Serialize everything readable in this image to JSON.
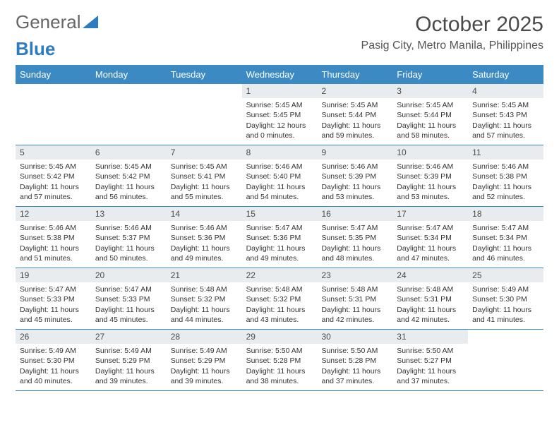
{
  "logo": {
    "text1": "General",
    "text2": "Blue"
  },
  "title": "October 2025",
  "location": "Pasig City, Metro Manila, Philippines",
  "colors": {
    "header_bg": "#3b8ac4",
    "header_text": "#ffffff",
    "daynum_bg": "#e9ecef",
    "week_border": "#3b8ac4",
    "text": "#333333",
    "logo_accent": "#2f7bbf"
  },
  "weekdays": [
    "Sunday",
    "Monday",
    "Tuesday",
    "Wednesday",
    "Thursday",
    "Friday",
    "Saturday"
  ],
  "weeks": [
    [
      null,
      null,
      null,
      {
        "n": "1",
        "sr": "5:45 AM",
        "ss": "5:45 PM",
        "dl": "12 hours and 0 minutes."
      },
      {
        "n": "2",
        "sr": "5:45 AM",
        "ss": "5:44 PM",
        "dl": "11 hours and 59 minutes."
      },
      {
        "n": "3",
        "sr": "5:45 AM",
        "ss": "5:44 PM",
        "dl": "11 hours and 58 minutes."
      },
      {
        "n": "4",
        "sr": "5:45 AM",
        "ss": "5:43 PM",
        "dl": "11 hours and 57 minutes."
      }
    ],
    [
      {
        "n": "5",
        "sr": "5:45 AM",
        "ss": "5:42 PM",
        "dl": "11 hours and 57 minutes."
      },
      {
        "n": "6",
        "sr": "5:45 AM",
        "ss": "5:42 PM",
        "dl": "11 hours and 56 minutes."
      },
      {
        "n": "7",
        "sr": "5:45 AM",
        "ss": "5:41 PM",
        "dl": "11 hours and 55 minutes."
      },
      {
        "n": "8",
        "sr": "5:46 AM",
        "ss": "5:40 PM",
        "dl": "11 hours and 54 minutes."
      },
      {
        "n": "9",
        "sr": "5:46 AM",
        "ss": "5:39 PM",
        "dl": "11 hours and 53 minutes."
      },
      {
        "n": "10",
        "sr": "5:46 AM",
        "ss": "5:39 PM",
        "dl": "11 hours and 53 minutes."
      },
      {
        "n": "11",
        "sr": "5:46 AM",
        "ss": "5:38 PM",
        "dl": "11 hours and 52 minutes."
      }
    ],
    [
      {
        "n": "12",
        "sr": "5:46 AM",
        "ss": "5:38 PM",
        "dl": "11 hours and 51 minutes."
      },
      {
        "n": "13",
        "sr": "5:46 AM",
        "ss": "5:37 PM",
        "dl": "11 hours and 50 minutes."
      },
      {
        "n": "14",
        "sr": "5:46 AM",
        "ss": "5:36 PM",
        "dl": "11 hours and 49 minutes."
      },
      {
        "n": "15",
        "sr": "5:47 AM",
        "ss": "5:36 PM",
        "dl": "11 hours and 49 minutes."
      },
      {
        "n": "16",
        "sr": "5:47 AM",
        "ss": "5:35 PM",
        "dl": "11 hours and 48 minutes."
      },
      {
        "n": "17",
        "sr": "5:47 AM",
        "ss": "5:34 PM",
        "dl": "11 hours and 47 minutes."
      },
      {
        "n": "18",
        "sr": "5:47 AM",
        "ss": "5:34 PM",
        "dl": "11 hours and 46 minutes."
      }
    ],
    [
      {
        "n": "19",
        "sr": "5:47 AM",
        "ss": "5:33 PM",
        "dl": "11 hours and 45 minutes."
      },
      {
        "n": "20",
        "sr": "5:47 AM",
        "ss": "5:33 PM",
        "dl": "11 hours and 45 minutes."
      },
      {
        "n": "21",
        "sr": "5:48 AM",
        "ss": "5:32 PM",
        "dl": "11 hours and 44 minutes."
      },
      {
        "n": "22",
        "sr": "5:48 AM",
        "ss": "5:32 PM",
        "dl": "11 hours and 43 minutes."
      },
      {
        "n": "23",
        "sr": "5:48 AM",
        "ss": "5:31 PM",
        "dl": "11 hours and 42 minutes."
      },
      {
        "n": "24",
        "sr": "5:48 AM",
        "ss": "5:31 PM",
        "dl": "11 hours and 42 minutes."
      },
      {
        "n": "25",
        "sr": "5:49 AM",
        "ss": "5:30 PM",
        "dl": "11 hours and 41 minutes."
      }
    ],
    [
      {
        "n": "26",
        "sr": "5:49 AM",
        "ss": "5:30 PM",
        "dl": "11 hours and 40 minutes."
      },
      {
        "n": "27",
        "sr": "5:49 AM",
        "ss": "5:29 PM",
        "dl": "11 hours and 39 minutes."
      },
      {
        "n": "28",
        "sr": "5:49 AM",
        "ss": "5:29 PM",
        "dl": "11 hours and 39 minutes."
      },
      {
        "n": "29",
        "sr": "5:50 AM",
        "ss": "5:28 PM",
        "dl": "11 hours and 38 minutes."
      },
      {
        "n": "30",
        "sr": "5:50 AM",
        "ss": "5:28 PM",
        "dl": "11 hours and 37 minutes."
      },
      {
        "n": "31",
        "sr": "5:50 AM",
        "ss": "5:27 PM",
        "dl": "11 hours and 37 minutes."
      },
      null
    ]
  ],
  "labels": {
    "sunrise": "Sunrise:",
    "sunset": "Sunset:",
    "daylight": "Daylight:"
  }
}
